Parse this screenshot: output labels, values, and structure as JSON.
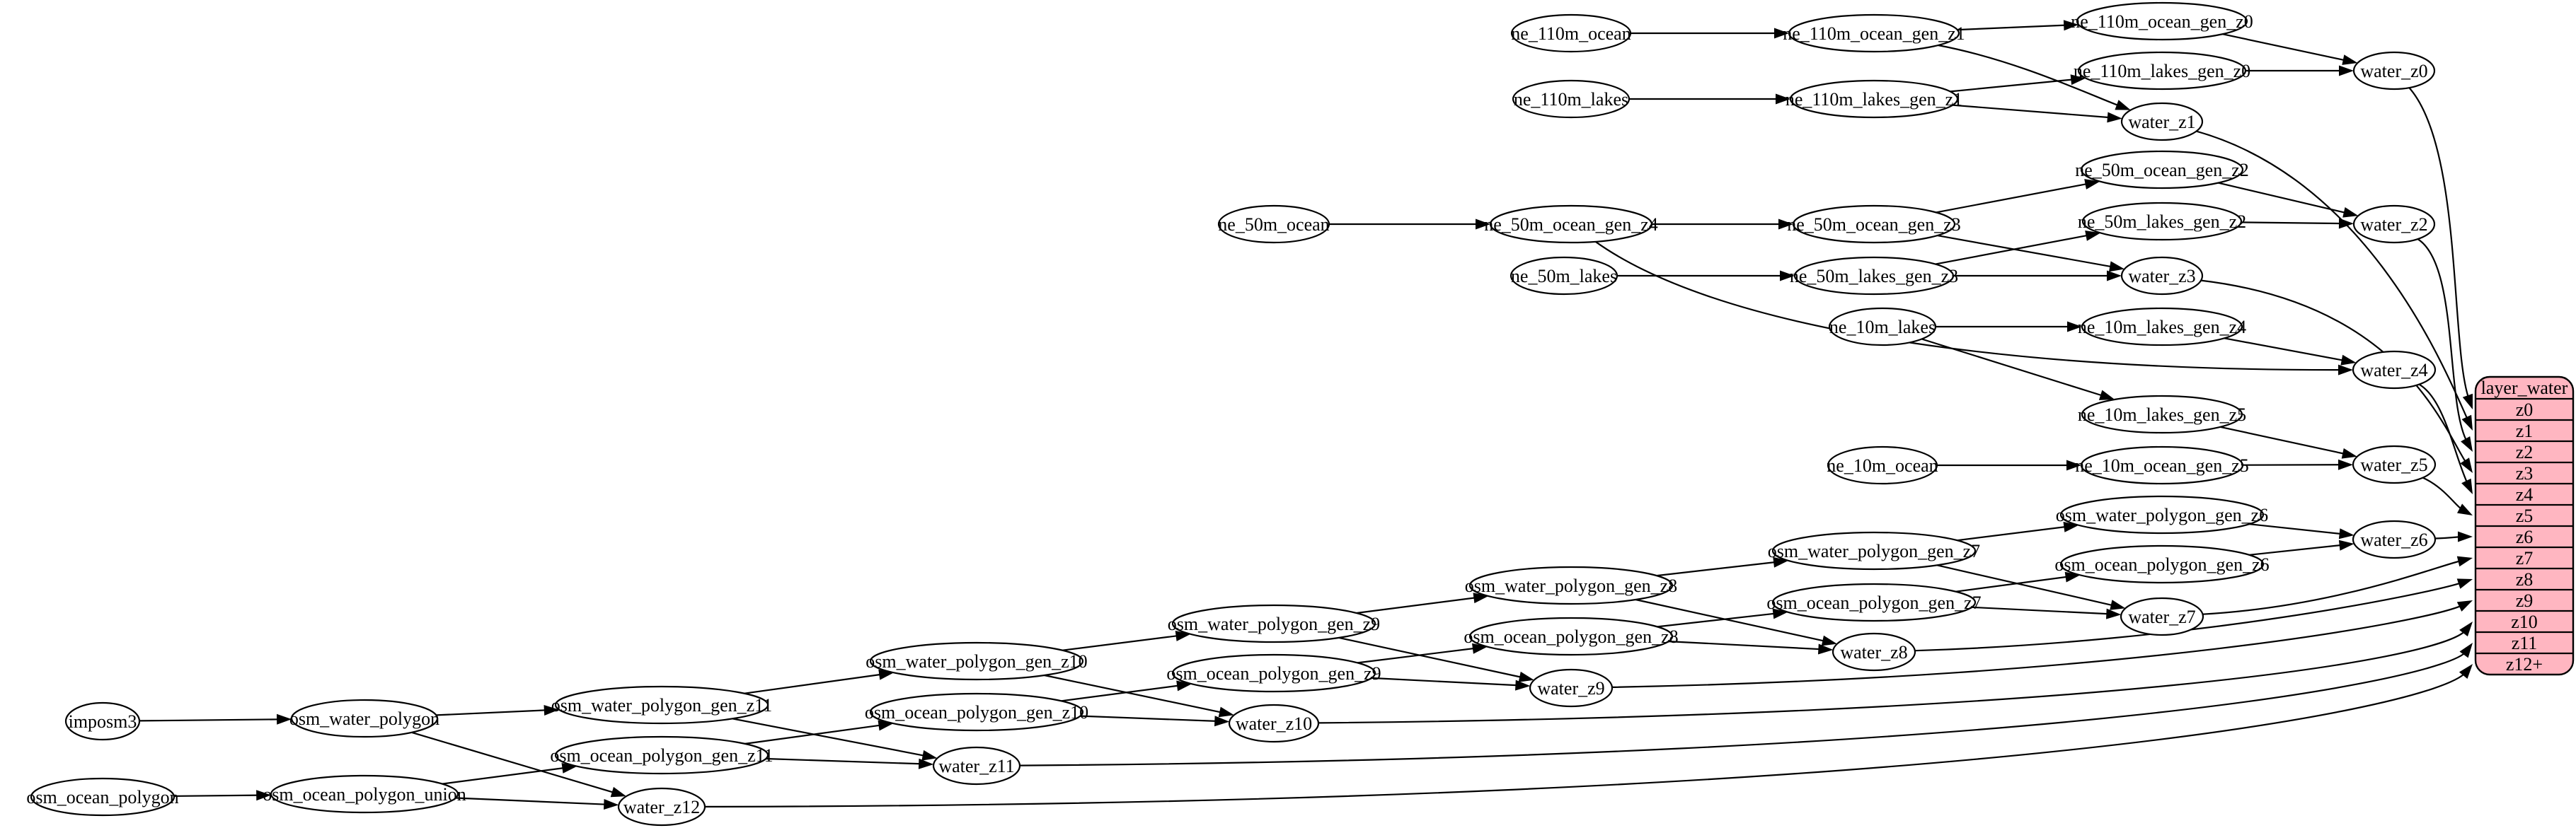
{
  "diagram": {
    "kind": "etl-dependency-graph",
    "colors": {
      "background": "#ffffff",
      "node_fill": "#ffffff",
      "node_stroke": "#000000",
      "edge": "#000000",
      "record_fill": "#ffb6c1",
      "record_stroke": "#000000",
      "text": "#000000"
    },
    "nodes": [
      {
        "id": "imposm3",
        "label": "imposm3"
      },
      {
        "id": "osm_water_polygon",
        "label": "osm_water_polygon"
      },
      {
        "id": "osm_water_polygon_gen_z11",
        "label": "osm_water_polygon_gen_z11"
      },
      {
        "id": "osm_water_polygon_gen_z10",
        "label": "osm_water_polygon_gen_z10"
      },
      {
        "id": "osm_water_polygon_gen_z9",
        "label": "osm_water_polygon_gen_z9"
      },
      {
        "id": "osm_water_polygon_gen_z8",
        "label": "osm_water_polygon_gen_z8"
      },
      {
        "id": "osm_water_polygon_gen_z7",
        "label": "osm_water_polygon_gen_z7"
      },
      {
        "id": "osm_water_polygon_gen_z6",
        "label": "osm_water_polygon_gen_z6"
      },
      {
        "id": "osm_ocean_polygon",
        "label": "osm_ocean_polygon"
      },
      {
        "id": "osm_ocean_polygon_union",
        "label": "osm_ocean_polygon_union"
      },
      {
        "id": "osm_ocean_polygon_gen_z11",
        "label": "osm_ocean_polygon_gen_z11"
      },
      {
        "id": "osm_ocean_polygon_gen_z10",
        "label": "osm_ocean_polygon_gen_z10"
      },
      {
        "id": "osm_ocean_polygon_gen_z9",
        "label": "osm_ocean_polygon_gen_z9"
      },
      {
        "id": "osm_ocean_polygon_gen_z8",
        "label": "osm_ocean_polygon_gen_z8"
      },
      {
        "id": "osm_ocean_polygon_gen_z7",
        "label": "osm_ocean_polygon_gen_z7"
      },
      {
        "id": "osm_ocean_polygon_gen_z6",
        "label": "osm_ocean_polygon_gen_z6"
      },
      {
        "id": "ne_110m_ocean",
        "label": "ne_110m_ocean"
      },
      {
        "id": "ne_110m_ocean_gen_z1",
        "label": "ne_110m_ocean_gen_z1"
      },
      {
        "id": "ne_110m_ocean_gen_z0",
        "label": "ne_110m_ocean_gen_z0"
      },
      {
        "id": "ne_110m_lakes",
        "label": "ne_110m_lakes"
      },
      {
        "id": "ne_110m_lakes_gen_z1",
        "label": "ne_110m_lakes_gen_z1"
      },
      {
        "id": "ne_110m_lakes_gen_z0",
        "label": "ne_110m_lakes_gen_z0"
      },
      {
        "id": "ne_50m_ocean",
        "label": "ne_50m_ocean"
      },
      {
        "id": "ne_50m_ocean_gen_z4",
        "label": "ne_50m_ocean_gen_z4"
      },
      {
        "id": "ne_50m_ocean_gen_z3",
        "label": "ne_50m_ocean_gen_z3"
      },
      {
        "id": "ne_50m_ocean_gen_z2",
        "label": "ne_50m_ocean_gen_z2"
      },
      {
        "id": "ne_50m_lakes",
        "label": "ne_50m_lakes"
      },
      {
        "id": "ne_50m_lakes_gen_z3",
        "label": "ne_50m_lakes_gen_z3"
      },
      {
        "id": "ne_50m_lakes_gen_z2",
        "label": "ne_50m_lakes_gen_z2"
      },
      {
        "id": "ne_10m_lakes",
        "label": "ne_10m_lakes"
      },
      {
        "id": "ne_10m_lakes_gen_z4",
        "label": "ne_10m_lakes_gen_z4"
      },
      {
        "id": "ne_10m_lakes_gen_z5",
        "label": "ne_10m_lakes_gen_z5"
      },
      {
        "id": "ne_10m_ocean",
        "label": "ne_10m_ocean"
      },
      {
        "id": "ne_10m_ocean_gen_z5",
        "label": "ne_10m_ocean_gen_z5"
      },
      {
        "id": "water_z0",
        "label": "water_z0"
      },
      {
        "id": "water_z1",
        "label": "water_z1"
      },
      {
        "id": "water_z2",
        "label": "water_z2"
      },
      {
        "id": "water_z3",
        "label": "water_z3"
      },
      {
        "id": "water_z4",
        "label": "water_z4"
      },
      {
        "id": "water_z5",
        "label": "water_z5"
      },
      {
        "id": "water_z6",
        "label": "water_z6"
      },
      {
        "id": "water_z7",
        "label": "water_z7"
      },
      {
        "id": "water_z8",
        "label": "water_z8"
      },
      {
        "id": "water_z9",
        "label": "water_z9"
      },
      {
        "id": "water_z10",
        "label": "water_z10"
      },
      {
        "id": "water_z11",
        "label": "water_z11"
      },
      {
        "id": "water_z12",
        "label": "water_z12"
      }
    ],
    "record": {
      "id": "layer_water",
      "header": "layer_water",
      "rows": [
        "z0",
        "z1",
        "z2",
        "z3",
        "z4",
        "z5",
        "z6",
        "z7",
        "z8",
        "z9",
        "z10",
        "z11",
        "z12+"
      ]
    },
    "edges": [
      {
        "from": "imposm3",
        "to": "osm_water_polygon"
      },
      {
        "from": "osm_water_polygon",
        "to": "osm_water_polygon_gen_z11"
      },
      {
        "from": "osm_water_polygon",
        "to": "water_z12"
      },
      {
        "from": "osm_ocean_polygon",
        "to": "osm_ocean_polygon_union"
      },
      {
        "from": "osm_ocean_polygon_union",
        "to": "osm_ocean_polygon_gen_z11"
      },
      {
        "from": "osm_ocean_polygon_union",
        "to": "water_z12"
      },
      {
        "from": "osm_water_polygon_gen_z11",
        "to": "osm_water_polygon_gen_z10"
      },
      {
        "from": "osm_water_polygon_gen_z11",
        "to": "water_z11"
      },
      {
        "from": "osm_ocean_polygon_gen_z11",
        "to": "osm_ocean_polygon_gen_z10"
      },
      {
        "from": "osm_ocean_polygon_gen_z11",
        "to": "water_z11"
      },
      {
        "from": "osm_water_polygon_gen_z10",
        "to": "osm_water_polygon_gen_z9"
      },
      {
        "from": "osm_water_polygon_gen_z10",
        "to": "water_z10"
      },
      {
        "from": "osm_ocean_polygon_gen_z10",
        "to": "osm_ocean_polygon_gen_z9"
      },
      {
        "from": "osm_ocean_polygon_gen_z10",
        "to": "water_z10"
      },
      {
        "from": "osm_water_polygon_gen_z9",
        "to": "osm_water_polygon_gen_z8"
      },
      {
        "from": "osm_water_polygon_gen_z9",
        "to": "water_z9"
      },
      {
        "from": "osm_ocean_polygon_gen_z9",
        "to": "osm_ocean_polygon_gen_z8"
      },
      {
        "from": "osm_ocean_polygon_gen_z9",
        "to": "water_z9"
      },
      {
        "from": "osm_water_polygon_gen_z8",
        "to": "osm_water_polygon_gen_z7"
      },
      {
        "from": "osm_water_polygon_gen_z8",
        "to": "water_z8"
      },
      {
        "from": "osm_ocean_polygon_gen_z8",
        "to": "osm_ocean_polygon_gen_z7"
      },
      {
        "from": "osm_ocean_polygon_gen_z8",
        "to": "water_z8"
      },
      {
        "from": "osm_water_polygon_gen_z7",
        "to": "osm_water_polygon_gen_z6"
      },
      {
        "from": "osm_water_polygon_gen_z7",
        "to": "water_z7"
      },
      {
        "from": "osm_ocean_polygon_gen_z7",
        "to": "osm_ocean_polygon_gen_z6"
      },
      {
        "from": "osm_ocean_polygon_gen_z7",
        "to": "water_z7"
      },
      {
        "from": "osm_water_polygon_gen_z6",
        "to": "water_z6"
      },
      {
        "from": "osm_ocean_polygon_gen_z6",
        "to": "water_z6"
      },
      {
        "from": "ne_110m_ocean",
        "to": "ne_110m_ocean_gen_z1"
      },
      {
        "from": "ne_110m_ocean_gen_z1",
        "to": "ne_110m_ocean_gen_z0"
      },
      {
        "from": "ne_110m_ocean_gen_z1",
        "to": "water_z1"
      },
      {
        "from": "ne_110m_ocean_gen_z0",
        "to": "water_z0"
      },
      {
        "from": "ne_110m_lakes",
        "to": "ne_110m_lakes_gen_z1"
      },
      {
        "from": "ne_110m_lakes_gen_z1",
        "to": "ne_110m_lakes_gen_z0"
      },
      {
        "from": "ne_110m_lakes_gen_z1",
        "to": "water_z1"
      },
      {
        "from": "ne_110m_lakes_gen_z0",
        "to": "water_z0"
      },
      {
        "from": "ne_50m_ocean",
        "to": "ne_50m_ocean_gen_z4"
      },
      {
        "from": "ne_50m_ocean_gen_z4",
        "to": "ne_50m_ocean_gen_z3"
      },
      {
        "from": "ne_50m_ocean_gen_z4",
        "to": "water_z4"
      },
      {
        "from": "ne_50m_ocean_gen_z3",
        "to": "ne_50m_ocean_gen_z2"
      },
      {
        "from": "ne_50m_ocean_gen_z3",
        "to": "water_z3"
      },
      {
        "from": "ne_50m_ocean_gen_z2",
        "to": "water_z2"
      },
      {
        "from": "ne_50m_lakes",
        "to": "ne_50m_lakes_gen_z3"
      },
      {
        "from": "ne_50m_lakes_gen_z3",
        "to": "ne_50m_lakes_gen_z2"
      },
      {
        "from": "ne_50m_lakes_gen_z3",
        "to": "water_z3"
      },
      {
        "from": "ne_50m_lakes_gen_z2",
        "to": "water_z2"
      },
      {
        "from": "ne_10m_lakes",
        "to": "ne_10m_lakes_gen_z4"
      },
      {
        "from": "ne_10m_lakes",
        "to": "ne_10m_lakes_gen_z5"
      },
      {
        "from": "ne_10m_lakes_gen_z4",
        "to": "water_z4"
      },
      {
        "from": "ne_10m_lakes_gen_z5",
        "to": "water_z5"
      },
      {
        "from": "ne_10m_ocean",
        "to": "ne_10m_ocean_gen_z5"
      },
      {
        "from": "ne_10m_ocean_gen_z5",
        "to": "water_z5"
      },
      {
        "from": "water_z0",
        "to": "layer_water:z0"
      },
      {
        "from": "water_z1",
        "to": "layer_water:z1"
      },
      {
        "from": "water_z2",
        "to": "layer_water:z2"
      },
      {
        "from": "water_z3",
        "to": "layer_water:z3"
      },
      {
        "from": "water_z4",
        "to": "layer_water:z4"
      },
      {
        "from": "water_z5",
        "to": "layer_water:z5"
      },
      {
        "from": "water_z6",
        "to": "layer_water:z6"
      },
      {
        "from": "water_z7",
        "to": "layer_water:z7"
      },
      {
        "from": "water_z8",
        "to": "layer_water:z8"
      },
      {
        "from": "water_z9",
        "to": "layer_water:z9"
      },
      {
        "from": "water_z10",
        "to": "layer_water:z10"
      },
      {
        "from": "water_z11",
        "to": "layer_water:z11"
      },
      {
        "from": "water_z12",
        "to": "layer_water:z12+"
      }
    ]
  }
}
